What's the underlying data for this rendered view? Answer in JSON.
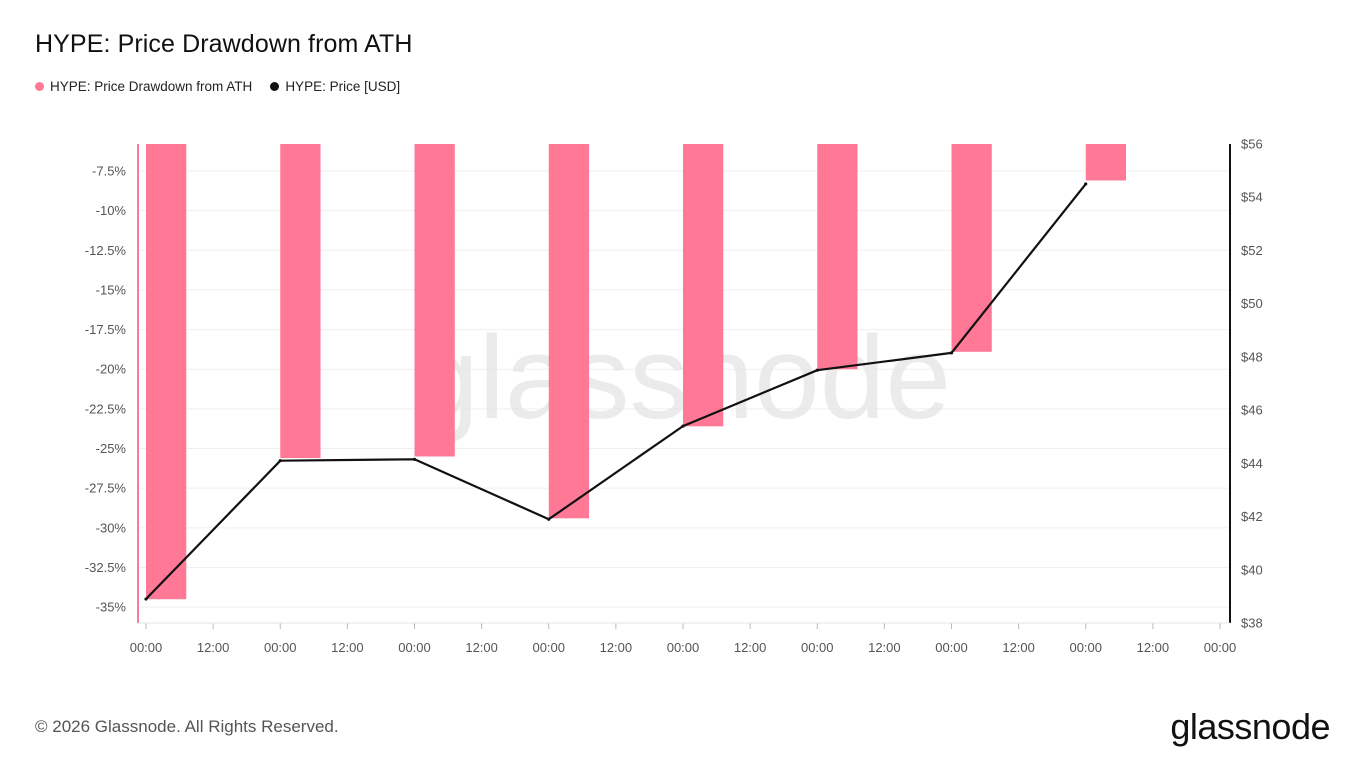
{
  "header": {
    "title": "HYPE: Price Drawdown from ATH"
  },
  "legend": [
    {
      "label": "HYPE: Price Drawdown from ATH",
      "color": "#ff7896"
    },
    {
      "label": "HYPE: Price [USD]",
      "color": "#111111"
    }
  ],
  "footer": {
    "copyright": "© 2026 Glassnode. All Rights Reserved.",
    "brand": "glassnode"
  },
  "watermark": "glassnode",
  "chart_data": {
    "type": "bar",
    "title": "HYPE: Price Drawdown from ATH",
    "x_ticks": [
      "00:00",
      "12:00",
      "00:00",
      "12:00",
      "00:00",
      "12:00",
      "00:00",
      "12:00",
      "00:00",
      "12:00",
      "00:00",
      "12:00",
      "00:00",
      "12:00",
      "00:00",
      "12:00",
      "00:00"
    ],
    "left_axis": {
      "ticks": [
        "-7.5%",
        "-10%",
        "-12.5%",
        "-15%",
        "-17.5%",
        "-20%",
        "-22.5%",
        "-25%",
        "-27.5%",
        "-30%",
        "-32.5%",
        "-35%"
      ],
      "range": [
        -36,
        -5.8
      ]
    },
    "right_axis": {
      "ticks": [
        "$38",
        "$40",
        "$42",
        "$44",
        "$46",
        "$48",
        "$50",
        "$52",
        "$54",
        "$56"
      ],
      "range": [
        38,
        56
      ]
    },
    "grid": true,
    "series": [
      {
        "name": "HYPE: Price Drawdown from ATH",
        "type": "bar",
        "axis": "left",
        "color": "#ff7896",
        "values": [
          -34.5,
          -25.6,
          -25.5,
          -29.4,
          -23.6,
          -20.0,
          -18.9,
          -8.1
        ]
      },
      {
        "name": "HYPE: Price [USD]",
        "type": "line",
        "axis": "right",
        "color": "#111111",
        "values": [
          38.9,
          44.1,
          44.15,
          41.9,
          45.4,
          47.5,
          48.15,
          54.5
        ]
      }
    ]
  }
}
